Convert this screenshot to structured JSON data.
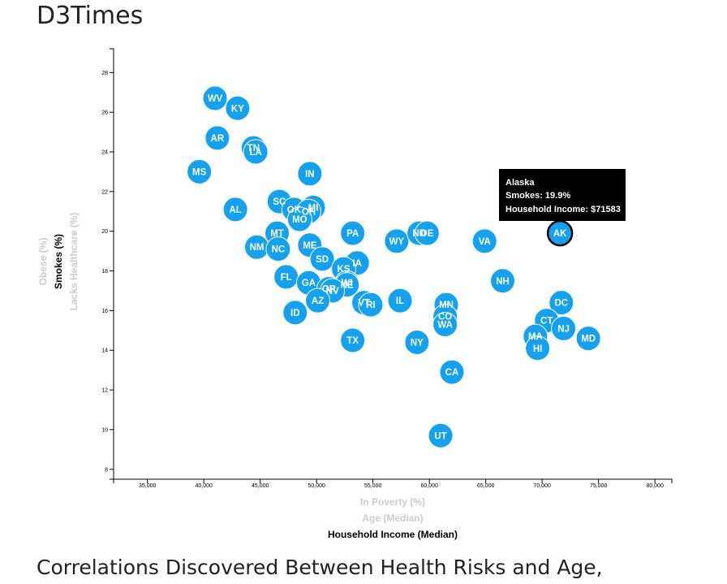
{
  "page": {
    "title": "D3Times",
    "footer_heading": "Correlations Discovered Between Health Risks and Age,"
  },
  "tooltip": {
    "state": "Alaska",
    "smokes_line": "Smokes: 19.9%",
    "income_line": "Household Income: $71583"
  },
  "colors": {
    "marker": "#14a2f0",
    "inactive_label": "#cccccc",
    "active_label": "#000000",
    "tooltip_bg": "#000000"
  },
  "chart_data": {
    "type": "scatter",
    "x_labels": [
      {
        "text": "In Poverty (%)",
        "active": false
      },
      {
        "text": "Age (Median)",
        "active": false
      },
      {
        "text": "Household Income (Median)",
        "active": true
      }
    ],
    "y_labels": [
      {
        "text": "Obese (%)",
        "active": false
      },
      {
        "text": "Smokes (%)",
        "active": true
      },
      {
        "text": "Lacks Healthcare (%)",
        "active": false
      }
    ],
    "xlim": [
      32000,
      81500
    ],
    "ylim": [
      7.5,
      29.2
    ],
    "x_ticks": [
      35000,
      40000,
      45000,
      50000,
      55000,
      60000,
      65000,
      70000,
      75000,
      80000
    ],
    "x_tick_labels": [
      "35,000",
      "40,000",
      "45,000",
      "50,000",
      "55,000",
      "60,000",
      "65,000",
      "70,000",
      "75,000",
      "80,000"
    ],
    "y_ticks": [
      8,
      10,
      12,
      14,
      16,
      18,
      20,
      22,
      24,
      26,
      28
    ],
    "y_tick_labels": [
      "8",
      "10",
      "12",
      "14",
      "16",
      "18",
      "20",
      "22",
      "24",
      "26",
      "28"
    ],
    "points": [
      {
        "abbr": "WV",
        "x": 41000,
        "y": 26.7
      },
      {
        "abbr": "KY",
        "x": 43000,
        "y": 26.2
      },
      {
        "abbr": "AR",
        "x": 41200,
        "y": 24.7
      },
      {
        "abbr": "TN",
        "x": 44400,
        "y": 24.2
      },
      {
        "abbr": "LA",
        "x": 44600,
        "y": 24.0
      },
      {
        "abbr": "MS",
        "x": 39600,
        "y": 23.0
      },
      {
        "abbr": "IN",
        "x": 49400,
        "y": 22.9
      },
      {
        "abbr": "AL",
        "x": 42800,
        "y": 21.1
      },
      {
        "abbr": "SC",
        "x": 46700,
        "y": 21.5
      },
      {
        "abbr": "OK",
        "x": 48000,
        "y": 21.1
      },
      {
        "abbr": "MI",
        "x": 49700,
        "y": 21.2
      },
      {
        "abbr": "OH",
        "x": 49300,
        "y": 21.0
      },
      {
        "abbr": "MO",
        "x": 48500,
        "y": 20.6
      },
      {
        "abbr": "MT",
        "x": 46500,
        "y": 19.9
      },
      {
        "abbr": "PA",
        "x": 53200,
        "y": 19.9
      },
      {
        "abbr": "WY",
        "x": 57100,
        "y": 19.5
      },
      {
        "abbr": "ND",
        "x": 59100,
        "y": 19.9
      },
      {
        "abbr": "DE",
        "x": 59800,
        "y": 19.9
      },
      {
        "abbr": "VA",
        "x": 64900,
        "y": 19.5
      },
      {
        "abbr": "AK",
        "x": 71583,
        "y": 19.9
      },
      {
        "abbr": "NM",
        "x": 44700,
        "y": 19.2
      },
      {
        "abbr": "NC",
        "x": 46600,
        "y": 19.1
      },
      {
        "abbr": "ME",
        "x": 49400,
        "y": 19.3
      },
      {
        "abbr": "SD",
        "x": 50500,
        "y": 18.6
      },
      {
        "abbr": "IA",
        "x": 53600,
        "y": 18.4
      },
      {
        "abbr": "KS",
        "x": 52400,
        "y": 18.1
      },
      {
        "abbr": "FL",
        "x": 47300,
        "y": 17.7
      },
      {
        "abbr": "GA",
        "x": 49300,
        "y": 17.4
      },
      {
        "abbr": "WI",
        "x": 52700,
        "y": 17.4
      },
      {
        "abbr": "NE",
        "x": 52700,
        "y": 17.3
      },
      {
        "abbr": "OR",
        "x": 51100,
        "y": 17.1
      },
      {
        "abbr": "NV",
        "x": 51400,
        "y": 17.0
      },
      {
        "abbr": "AZ",
        "x": 50100,
        "y": 16.5
      },
      {
        "abbr": "VT",
        "x": 54200,
        "y": 16.4
      },
      {
        "abbr": "RI",
        "x": 54800,
        "y": 16.3
      },
      {
        "abbr": "IL",
        "x": 57400,
        "y": 16.5
      },
      {
        "abbr": "ID",
        "x": 48100,
        "y": 15.9
      },
      {
        "abbr": "NH",
        "x": 66500,
        "y": 17.5
      },
      {
        "abbr": "MN",
        "x": 61500,
        "y": 16.3
      },
      {
        "abbr": "CO",
        "x": 61400,
        "y": 15.7
      },
      {
        "abbr": "WA",
        "x": 61400,
        "y": 15.3
      },
      {
        "abbr": "DC",
        "x": 71700,
        "y": 16.4
      },
      {
        "abbr": "CT",
        "x": 70400,
        "y": 15.5
      },
      {
        "abbr": "NJ",
        "x": 71900,
        "y": 15.1
      },
      {
        "abbr": "MA",
        "x": 69400,
        "y": 14.7
      },
      {
        "abbr": "HI",
        "x": 69600,
        "y": 14.1
      },
      {
        "abbr": "MD",
        "x": 74100,
        "y": 14.6
      },
      {
        "abbr": "TX",
        "x": 53200,
        "y": 14.5
      },
      {
        "abbr": "NY",
        "x": 58900,
        "y": 14.4
      },
      {
        "abbr": "CA",
        "x": 62000,
        "y": 12.9
      },
      {
        "abbr": "UT",
        "x": 61000,
        "y": 9.7
      }
    ],
    "selected": "AK"
  }
}
